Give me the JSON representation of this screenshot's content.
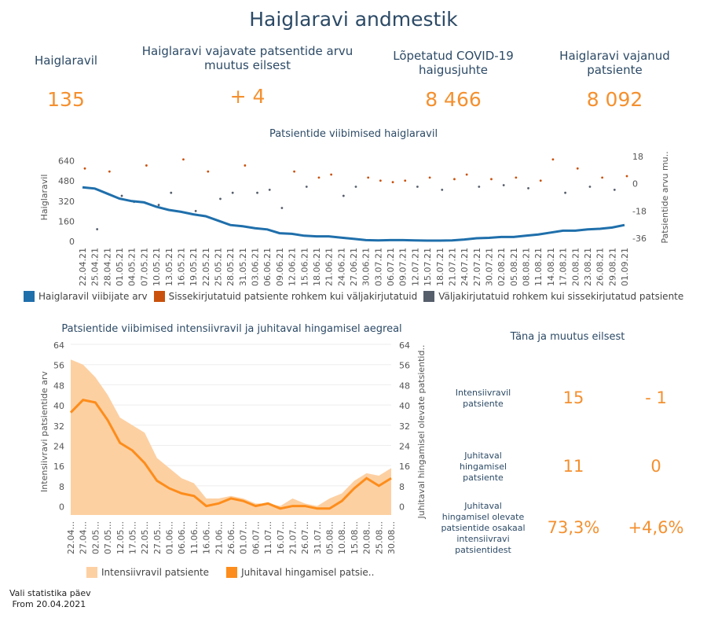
{
  "title": "Haiglaravi andmestik",
  "kpis": [
    {
      "label": "Haiglaravil",
      "value": "135"
    },
    {
      "label": "Haiglaravi vajavate patsentide arvu muutus eilsest",
      "value": "+ 4"
    },
    {
      "label": "Lõpetatud COVID-19 haigusjuhte",
      "value": "8 466"
    },
    {
      "label": "Haiglaravi vajanud patsiente",
      "value": "8 092"
    }
  ],
  "colors": {
    "line": "#1f6fab",
    "positive": "#c9510c",
    "negative": "#565e6c",
    "area": "#fdd0a2",
    "line2": "#fd8d1c",
    "accent": "#f4902f"
  },
  "chart_data": [
    {
      "type": "line",
      "title": "Patsientide viibimised haiglaravil",
      "ylabel": "Haiglaravil",
      "y2label": "Patsientide arvu mu..",
      "yticks": [
        0,
        160,
        320,
        480,
        640
      ],
      "y2ticks": [
        -36,
        -18,
        0,
        18
      ],
      "ylim": [
        0,
        700
      ],
      "y2lim": [
        -38,
        20
      ],
      "x": [
        "22.04.21",
        "25.04.21",
        "28.04.21",
        "01.05.21",
        "04.05.21",
        "07.05.21",
        "10.05.21",
        "13.05.21",
        "16.05.21",
        "19.05.21",
        "22.05.21",
        "25.05.21",
        "28.05.21",
        "31.05.21",
        "03.06.21",
        "06.06.21",
        "09.06.21",
        "12.06.21",
        "15.06.21",
        "18.06.21",
        "21.06.21",
        "24.06.21",
        "27.06.21",
        "30.06.21",
        "03.07.21",
        "06.07.21",
        "09.07.21",
        "12.07.21",
        "15.07.21",
        "18.07.21",
        "21.07.21",
        "24.07.21",
        "27.07.21",
        "30.07.21",
        "02.08.21",
        "05.08.21",
        "08.08.21",
        "11.08.21",
        "14.08.21",
        "17.08.21",
        "20.08.21",
        "23.08.21",
        "26.08.21",
        "29.08.21",
        "01.09.21"
      ],
      "series": [
        {
          "name": "Haiglaravil viibijate arv",
          "type": "line",
          "values": [
            430,
            420,
            380,
            340,
            320,
            310,
            275,
            250,
            235,
            215,
            200,
            165,
            130,
            120,
            105,
            95,
            65,
            60,
            45,
            40,
            40,
            30,
            20,
            10,
            8,
            10,
            10,
            8,
            6,
            6,
            8,
            15,
            25,
            28,
            35,
            35,
            45,
            55,
            70,
            85,
            85,
            95,
            100,
            110,
            130
          ]
        },
        {
          "name": "Sissekirjutatuid patsiente rohkem kui väljakirjutatuid / Väljakirjutatuid rohkem kui sissekirjutatud patsiente",
          "type": "scatter",
          "values": [
            10,
            -30,
            8,
            -8,
            -12,
            12,
            -14,
            -6,
            16,
            -18,
            8,
            -10,
            -6,
            12,
            -6,
            -4,
            -16,
            8,
            -2,
            4,
            6,
            -8,
            -2,
            4,
            2,
            1,
            2,
            -2,
            4,
            -4,
            3,
            6,
            -2,
            3,
            -1,
            4,
            -3,
            2,
            16,
            -6,
            10,
            -2,
            4,
            -4,
            5
          ]
        }
      ]
    },
    {
      "type": "area",
      "title": "Patsientide viibimised intensiivravil ja juhitaval hingamisel aegreal",
      "ylabel": "Intensiivravi patsientide arv",
      "y2label": "Juhitaval hingamisel olevate patsientid..",
      "yticks": [
        0,
        8,
        16,
        24,
        32,
        40,
        48,
        56,
        64
      ],
      "ylim": [
        -2,
        64
      ],
      "x": [
        "22.04...",
        "27.04...",
        "02.05...",
        "07.05...",
        "12.05...",
        "17.05...",
        "22.05...",
        "27.05...",
        "01.06...",
        "06.06...",
        "11.06...",
        "16.06...",
        "21.06...",
        "26.06...",
        "01.07...",
        "06.07...",
        "11.07...",
        "16.07...",
        "21.07...",
        "26.07...",
        "31.07...",
        "05.08...",
        "10.08...",
        "15.08...",
        "20.08...",
        "25.08...",
        "30.08..."
      ],
      "series": [
        {
          "name": "Intensiivravil patsiente",
          "type": "area",
          "values": [
            58,
            56,
            51,
            44,
            35,
            32,
            29,
            19,
            15,
            11,
            9,
            3,
            3,
            4,
            3,
            1,
            1,
            0,
            3,
            1,
            0,
            3,
            5,
            10,
            13,
            12,
            15
          ]
        },
        {
          "name": "Juhitaval hingamisel patsie..",
          "type": "line",
          "values": [
            37,
            42,
            41,
            34,
            25,
            22,
            17,
            10,
            7,
            5,
            4,
            0,
            1,
            3,
            2,
            0,
            1,
            -1,
            0,
            0,
            -1,
            -1,
            2,
            7,
            11,
            8,
            11
          ]
        }
      ]
    }
  ],
  "today": {
    "title": "Täna ja muutus eilsest",
    "rows": [
      {
        "label": "Intensiivravil patsiente",
        "value": "15",
        "change": "- 1"
      },
      {
        "label": "Juhitaval hingamisel patsiente",
        "value": "11",
        "change": "0"
      },
      {
        "label": "Juhitaval hingamisel olevate patsientide osakaal intensiivravi patsientidest",
        "value": "73,3%",
        "change": "+4,6%"
      }
    ]
  },
  "footer": {
    "line1": "Vali statistika päev",
    "line2": " From 20.04.2021"
  }
}
